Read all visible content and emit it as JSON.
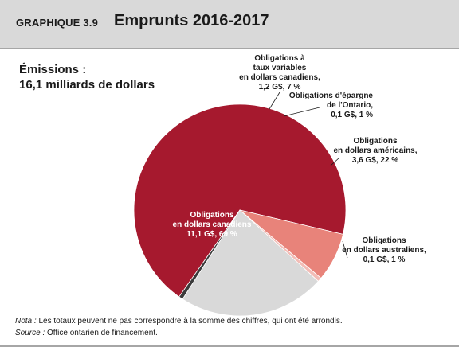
{
  "header": {
    "label": "GRAPHIQUE  3.9",
    "title": "Emprunts 2016-2017"
  },
  "issues": {
    "line1": "Émissions :",
    "line2": "16,1 milliards de dollars"
  },
  "notes": {
    "nota_label": "Nota :",
    "nota_text": " Les totaux peuvent ne pas correspondre à la somme des chiffres, qui ont été arrondis.",
    "source_label": "Source :",
    "source_text": " Office  ontarien de financement."
  },
  "chart_data": {
    "type": "pie",
    "total_label": "16,1 milliards de dollars",
    "unit": "G$",
    "slices": [
      {
        "name": "Obligations en dollars canadiens",
        "value": 11.1,
        "percent": 69,
        "color": "#a6192e",
        "label_lines": [
          "Obligations",
          "en dollars canadiens",
          "11,1 G$, 69 %"
        ]
      },
      {
        "name": "Obligations à taux variables en dollars canadiens",
        "value": 1.2,
        "percent": 7,
        "color": "#e8837a",
        "label_lines": [
          "Obligations à",
          "taux variables",
          "en dollars canadiens,",
          "1,2 G$, 7 %"
        ]
      },
      {
        "name": "Obligations d'épargne de l'Ontario",
        "value": 0.1,
        "percent": 1,
        "color": "#f2bcb6",
        "label_lines": [
          "Obligations d'épargne",
          "de l'Ontario,",
          "0,1 G$, 1 %"
        ]
      },
      {
        "name": "Obligations en dollars américains",
        "value": 3.6,
        "percent": 22,
        "color": "#d9d9d9",
        "label_lines": [
          "Obligations",
          "en dollars américains,",
          "3,6 G$, 22 %"
        ]
      },
      {
        "name": "Obligations en dollars australiens",
        "value": 0.1,
        "percent": 1,
        "color": "#3a3a3a",
        "label_lines": [
          "Obligations",
          "en dollars australiens,",
          "0,1 G$, 1 %"
        ]
      }
    ]
  }
}
